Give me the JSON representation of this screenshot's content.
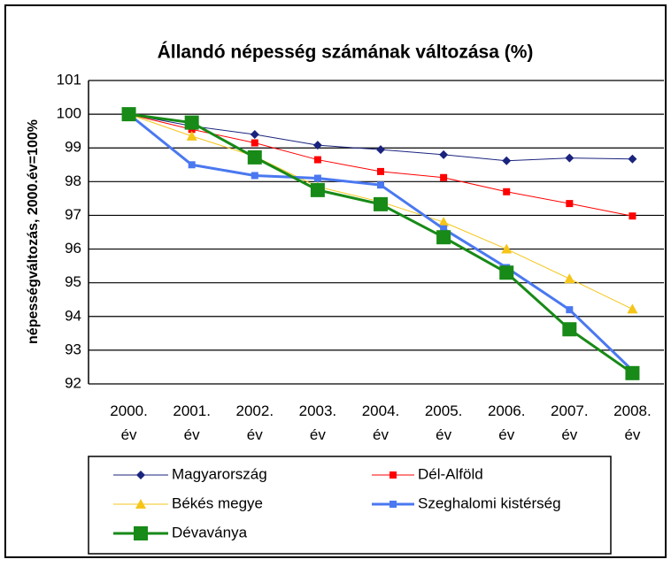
{
  "chart_data": {
    "type": "line",
    "title": "Állandó népesség számának változása (%)",
    "y_label": "népességváltozás, 2000.év=100%",
    "categories": [
      "2000. év",
      "2001. év",
      "2002. év",
      "2003. év",
      "2004. év",
      "2005. év",
      "2006. év",
      "2007. év",
      "2008. év"
    ],
    "ylim": [
      92,
      101
    ],
    "yticks": [
      92,
      93,
      94,
      95,
      96,
      97,
      98,
      99,
      100,
      101
    ],
    "grid": true,
    "legend": "bottom",
    "series": [
      {
        "name": "Magyarország",
        "color": "#1a237e",
        "marker": "diamond",
        "line_width": 1,
        "values": [
          100,
          99.65,
          99.4,
          99.08,
          98.95,
          98.8,
          98.62,
          98.7,
          98.67
        ]
      },
      {
        "name": "Dél-Alföld",
        "color": "#ff0000",
        "marker": "square",
        "line_width": 1,
        "values": [
          100,
          99.55,
          99.15,
          98.65,
          98.3,
          98.12,
          97.7,
          97.35,
          96.98
        ]
      },
      {
        "name": "Békés megye",
        "color": "#f5c518",
        "marker": "triangle",
        "line_width": 1,
        "values": [
          100,
          99.35,
          98.75,
          97.85,
          97.4,
          96.8,
          96.0,
          95.12,
          94.22
        ]
      },
      {
        "name": "Szeghalomi kistérség",
        "color": "#4a78f0",
        "marker": "square",
        "line_width": 3,
        "values": [
          100,
          98.5,
          98.18,
          98.1,
          97.9,
          96.6,
          95.45,
          94.2,
          92.4
        ]
      },
      {
        "name": "Dévaványa",
        "color": "#178a17",
        "marker": "bigsquare",
        "line_width": 3,
        "values": [
          100,
          99.75,
          98.72,
          97.75,
          97.33,
          96.35,
          95.3,
          93.62,
          92.32
        ]
      }
    ]
  }
}
